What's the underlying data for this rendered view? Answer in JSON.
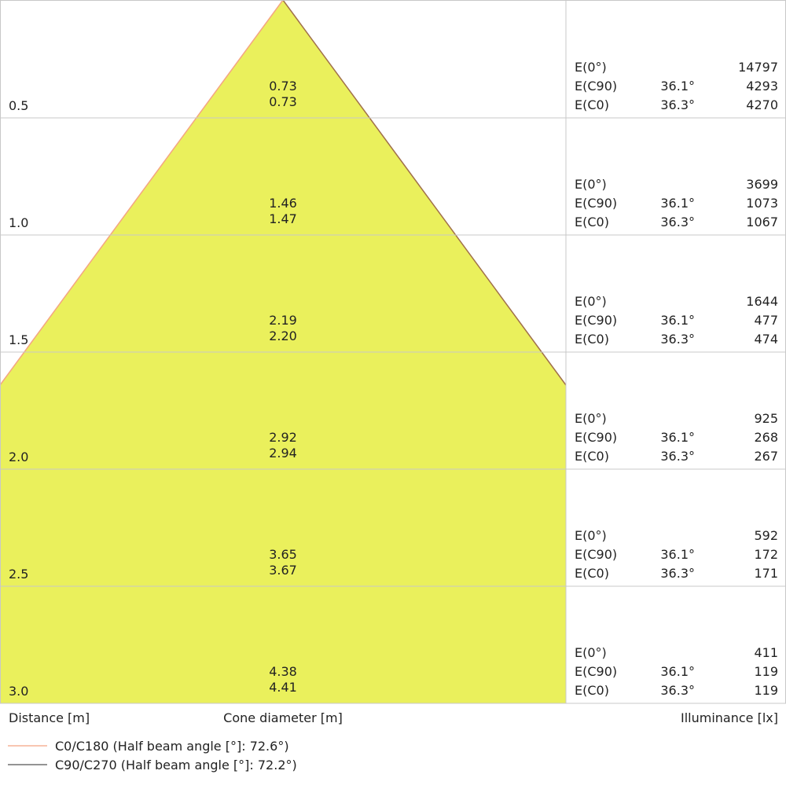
{
  "chart_data": {
    "type": "cone-diagram",
    "fill_color": "#eaf05c",
    "distance_label": "Distance [m]",
    "diameter_label": "Cone diameter [m]",
    "illuminance_label": "Illuminance [lx]",
    "rows": [
      {
        "distance": "0.5",
        "d_c0": "0.73",
        "d_c90": "0.73",
        "e0": "14797",
        "c90_angle": "36.1°",
        "e_c90": "4293",
        "c0_angle": "36.3°",
        "e_c0": "4270"
      },
      {
        "distance": "1.0",
        "d_c0": "1.46",
        "d_c90": "1.47",
        "e0": "3699",
        "c90_angle": "36.1°",
        "e_c90": "1073",
        "c0_angle": "36.3°",
        "e_c0": "1067"
      },
      {
        "distance": "1.5",
        "d_c0": "2.19",
        "d_c90": "2.20",
        "e0": "1644",
        "c90_angle": "36.1°",
        "e_c90": "477",
        "c0_angle": "36.3°",
        "e_c0": "474"
      },
      {
        "distance": "2.0",
        "d_c0": "2.92",
        "d_c90": "2.94",
        "e0": "925",
        "c90_angle": "36.1°",
        "e_c90": "268",
        "c0_angle": "36.3°",
        "e_c0": "267"
      },
      {
        "distance": "2.5",
        "d_c0": "3.65",
        "d_c90": "3.67",
        "e0": "592",
        "c90_angle": "36.1°",
        "e_c90": "172",
        "c0_angle": "36.3°",
        "e_c0": "171"
      },
      {
        "distance": "3.0",
        "d_c0": "4.38",
        "d_c90": "4.41",
        "e0": "411",
        "c90_angle": "36.1°",
        "e_c90": "119",
        "c0_angle": "36.3°",
        "e_c0": "119"
      }
    ],
    "row_labels": {
      "e0": "E(0°)",
      "e_c90": "E(C90)",
      "e_c0": "E(C0)"
    },
    "legend": [
      {
        "name": "C0/C180 (Half beam angle [°]: 72.6°)",
        "color": "#f4a582"
      },
      {
        "name": "C90/C270 (Half beam angle [°]: 72.2°)",
        "color": "#555555"
      }
    ]
  }
}
